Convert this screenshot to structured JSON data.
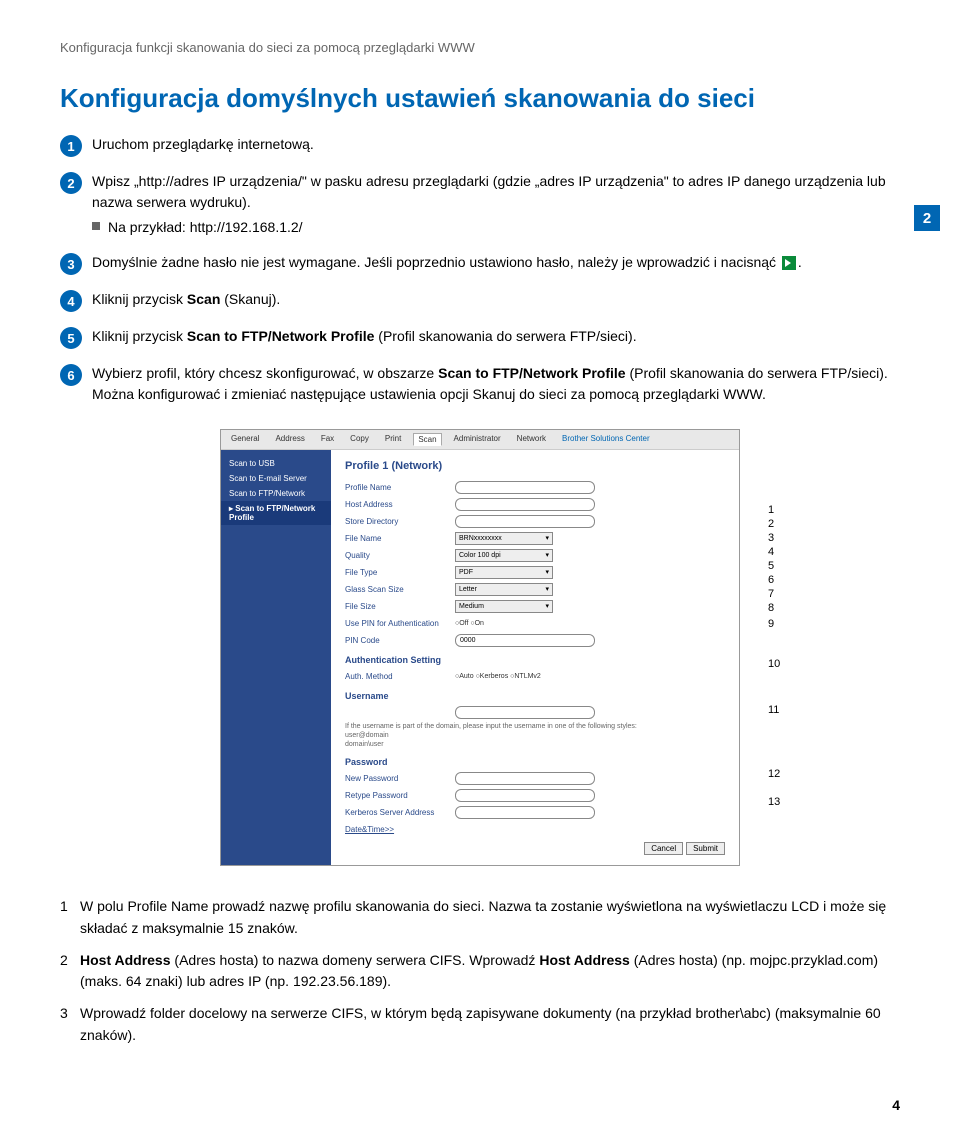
{
  "breadcrumb": "Konfiguracja funkcji skanowania do sieci za pomocą przeglądarki WWW",
  "title": "Konfiguracja domyślnych ustawień skanowania do sieci",
  "chapter": "2",
  "steps": {
    "s1": "Uruchom przeglądarkę internetową.",
    "s2": "Wpisz „http://adres IP urządzenia/\" w pasku adresu przeglądarki (gdzie „adres IP urządzenia\" to adres IP danego urządzenia lub nazwa serwera wydruku).",
    "s2_sub": "Na przykład: http://192.168.1.2/",
    "s3a": "Domyślnie żadne hasło nie jest wymagane. Jeśli poprzednio ustawiono hasło, należy je wprowadzić i nacisnąć ",
    "s3b": ".",
    "s4_a": "Kliknij przycisk ",
    "s4_b": " (Skanuj).",
    "s4_bold": "Scan",
    "s5_a": "Kliknij przycisk ",
    "s5_b": " (Profil skanowania do serwera FTP/sieci).",
    "s5_bold": "Scan to FTP/Network Profile",
    "s6_a": "Wybierz profil, który chcesz skonfigurować, w obszarze ",
    "s6_b": " (Profil skanowania do serwera FTP/sieci).",
    "s6_bold": "Scan to FTP/Network Profile",
    "s6_c": "Można konfigurować i zmieniać następujące ustawienia opcji Skanuj do sieci za pomocą przeglądarki WWW."
  },
  "shot": {
    "tabs": [
      "General",
      "Address",
      "Fax",
      "Copy",
      "Print",
      "Scan",
      "Administrator",
      "Network"
    ],
    "logo": "Brother Solutions Center",
    "side": [
      "Scan to USB",
      "Scan to E-mail Server",
      "Scan to FTP/Network",
      "Scan to FTP/Network Profile"
    ],
    "panel_title": "Profile 1 (Network)",
    "rows": [
      {
        "label": "Profile Name",
        "type": "field",
        "val": ""
      },
      {
        "label": "Host Address",
        "type": "field",
        "val": ""
      },
      {
        "label": "Store Directory",
        "type": "field",
        "val": ""
      },
      {
        "label": "File Name",
        "type": "sel",
        "val": "BRNxxxxxxxx"
      },
      {
        "label": "Quality",
        "type": "sel",
        "val": "Color 100 dpi"
      },
      {
        "label": "File Type",
        "type": "sel",
        "val": "PDF"
      },
      {
        "label": "Glass Scan Size",
        "type": "sel",
        "val": "Letter"
      },
      {
        "label": "File Size",
        "type": "sel",
        "val": "Medium"
      },
      {
        "label": "Use PIN for Authentication",
        "type": "radio",
        "val": "○Off ○On"
      },
      {
        "label": "PIN Code",
        "type": "field",
        "val": "0000"
      }
    ],
    "auth_title": "Authentication Setting",
    "auth_row": {
      "label": "Auth. Method",
      "val": "○Auto ○Kerberos ○NTLMv2"
    },
    "user_title": "Username",
    "user_hint": "If the username is part of the domain, please input the username in one of the following styles:\nuser@domain\ndomain\\user",
    "pass_title": "Password",
    "pass_rows": [
      "New Password",
      "Retype Password"
    ],
    "kerb": "Kerberos Server Address",
    "date": "Date&Time>>",
    "btns": [
      "Cancel",
      "Submit"
    ]
  },
  "callouts": [
    "1",
    "2",
    "3",
    "4",
    "5",
    "6",
    "7",
    "8",
    "9",
    "10",
    "11",
    "12",
    "13"
  ],
  "callout_tops": [
    44,
    58,
    72,
    86,
    100,
    114,
    128,
    142,
    158,
    198,
    244,
    308,
    336
  ],
  "legend": {
    "l1_a": "W polu Profile Name prowadź nazwę profilu skanowania do sieci. Nazwa ta zostanie wyświetlona na wyświetlaczu LCD i może się składać z maksymalnie 15 znaków.",
    "l2_a": "Host Address",
    "l2_b": " (Adres hosta) to nazwa domeny serwera CIFS. Wprowadź ",
    "l2_c": "Host Address",
    "l2_d": " (Adres hosta) (np. mojpc.przyklad.com) (maks. 64 znaki) lub adres IP (np. 192.23.56.189).",
    "l3_a": "Wprowadź folder docelowy na serwerze CIFS, w którym będą zapisywane dokumenty (na przykład brother\\abc) (maksymalnie 60 znaków)."
  },
  "pagenum": "4"
}
